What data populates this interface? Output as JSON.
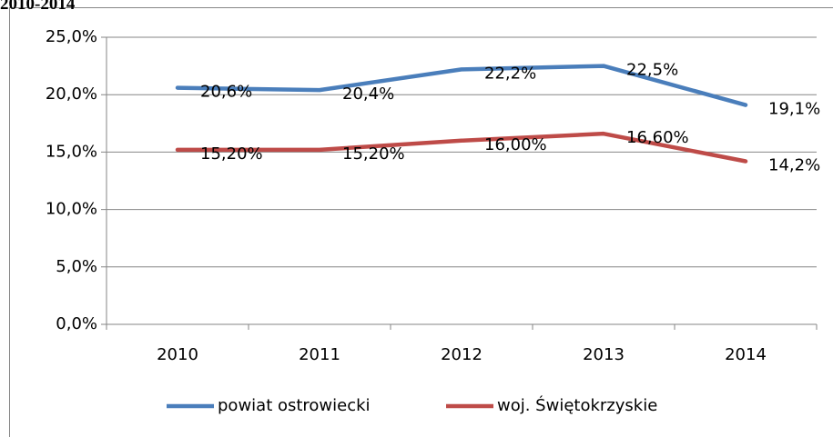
{
  "chart_data": {
    "type": "line",
    "title": "2010-2014",
    "categories": [
      "2010",
      "2011",
      "2012",
      "2013",
      "2014"
    ],
    "series": [
      {
        "name": "powiat ostrowiecki",
        "color": "#4a7ebb",
        "values": [
          20.6,
          20.4,
          22.2,
          22.5,
          19.1
        ],
        "value_labels": [
          "20,6%",
          "20,4%",
          "22,2%",
          "22,5%",
          "19,1%"
        ]
      },
      {
        "name": "woj. Świętokrzyskie",
        "color": "#be4b48",
        "values": [
          15.2,
          15.2,
          16.0,
          16.6,
          14.2
        ],
        "value_labels": [
          "15,20%",
          "15,20%",
          "16,00%",
          "16,60%",
          "14,2%"
        ]
      }
    ],
    "ylim": [
      0,
      25
    ],
    "yticks": [
      {
        "value": 0,
        "label": "0,0%"
      },
      {
        "value": 5,
        "label": "5,0%"
      },
      {
        "value": 10,
        "label": "10,0%"
      },
      {
        "value": 15,
        "label": "15,0%"
      },
      {
        "value": 20,
        "label": "20,0%"
      },
      {
        "value": 25,
        "label": "25,0%"
      }
    ],
    "grid": true,
    "legend": "bottom"
  }
}
